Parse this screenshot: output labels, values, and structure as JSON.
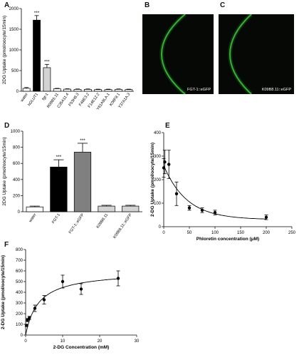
{
  "panels": {
    "A": {
      "label": "A"
    },
    "B": {
      "label": "B",
      "caption": "FGT-1::eGFP"
    },
    "C": {
      "label": "C",
      "caption": "K09B8.11::eGFP"
    },
    "D": {
      "label": "D"
    },
    "E": {
      "label": "E"
    },
    "F": {
      "label": "F"
    }
  },
  "colors": {
    "black": "#000000",
    "darkgray": "#808080",
    "lightgray": "#d3d3d3",
    "white": "#ffffff",
    "gfp": "#3cc83c"
  },
  "chart_data": [
    {
      "id": "A",
      "type": "bar",
      "title": "",
      "ylabel": "2DG Uptake (pmol/oocyte/15min)",
      "xlabel": "",
      "ylim": [
        0,
        2000
      ],
      "yticks": [
        "0",
        "500",
        "1000",
        "1500",
        "2000"
      ],
      "categories": [
        "water",
        "hGLUT1",
        "fgt-1",
        "R09B5.11",
        "C35A11.4",
        "F53H8.3",
        "F48E3.2",
        "F14E12.2",
        "Y61A9LA.1",
        "K08F8.1",
        "Y37A1A.3"
      ],
      "values": [
        70,
        1720,
        570,
        60,
        50,
        45,
        45,
        40,
        40,
        45,
        40
      ],
      "errors": [
        20,
        110,
        80,
        10,
        10,
        10,
        10,
        10,
        10,
        10,
        10
      ],
      "bar_colors": [
        "#ffffff",
        "#000000",
        "#d3d3d3",
        "#ffffff",
        "#ffffff",
        "#ffffff",
        "#ffffff",
        "#ffffff",
        "#ffffff",
        "#ffffff",
        "#ffffff"
      ],
      "annotations": [
        "",
        "***",
        "***",
        "",
        "",
        "",
        "",
        "",
        "",
        "",
        ""
      ]
    },
    {
      "id": "D",
      "type": "bar",
      "title": "",
      "ylabel": "2DG Uptake (pmol/oocyte/15min)",
      "xlabel": "",
      "ylim": [
        0,
        1000
      ],
      "yticks": [
        "0",
        "200",
        "400",
        "600",
        "800",
        "1000"
      ],
      "categories": [
        "water",
        "FGT-1",
        "FGT-1::eGFP",
        "K09B8.11",
        "K09B8.11::eGFP"
      ],
      "values": [
        60,
        555,
        740,
        70,
        70
      ],
      "errors": [
        10,
        90,
        110,
        10,
        10
      ],
      "bar_colors": [
        "#ffffff",
        "#000000",
        "#808080",
        "#d3d3d3",
        "#d3d3d3"
      ],
      "annotations": [
        "",
        "***",
        "***",
        "",
        ""
      ]
    },
    {
      "id": "E",
      "type": "scatter",
      "title": "",
      "ylabel": "2-DG  Uptake (pmol/oocyte/15min)",
      "xlabel": "Phloretin concentration (μM)",
      "xlim": [
        0,
        250
      ],
      "ylim": [
        0,
        400
      ],
      "xticks": [
        "0",
        "50",
        "100",
        "150",
        "200",
        "250"
      ],
      "yticks": [
        "0",
        "100",
        "200",
        "300",
        "400"
      ],
      "x": [
        0,
        2,
        10,
        25,
        50,
        75,
        100,
        200
      ],
      "y": [
        250,
        275,
        265,
        140,
        80,
        70,
        60,
        40
      ],
      "errors": [
        40,
        50,
        60,
        50,
        10,
        10,
        10,
        10
      ],
      "curve": "exponential decay fit"
    },
    {
      "id": "F",
      "type": "scatter",
      "title": "",
      "ylabel": "2-DG  Uptake (pmol/oocyte/15min)",
      "xlabel": "2-DG Concentration (mM)",
      "xlim": [
        0,
        30
      ],
      "ylim": [
        0,
        800
      ],
      "xticks": [
        "0",
        "10",
        "20",
        "30"
      ],
      "yticks": [
        "0",
        "100",
        "200",
        "300",
        "400",
        "500",
        "600",
        "700",
        "800"
      ],
      "x": [
        0.25,
        0.5,
        1,
        2.5,
        5,
        10,
        15,
        25
      ],
      "y": [
        90,
        140,
        160,
        250,
        330,
        500,
        430,
        530
      ],
      "errors": [
        10,
        15,
        15,
        30,
        40,
        60,
        50,
        70
      ],
      "curve": "Michaelis-Menten fit"
    }
  ]
}
